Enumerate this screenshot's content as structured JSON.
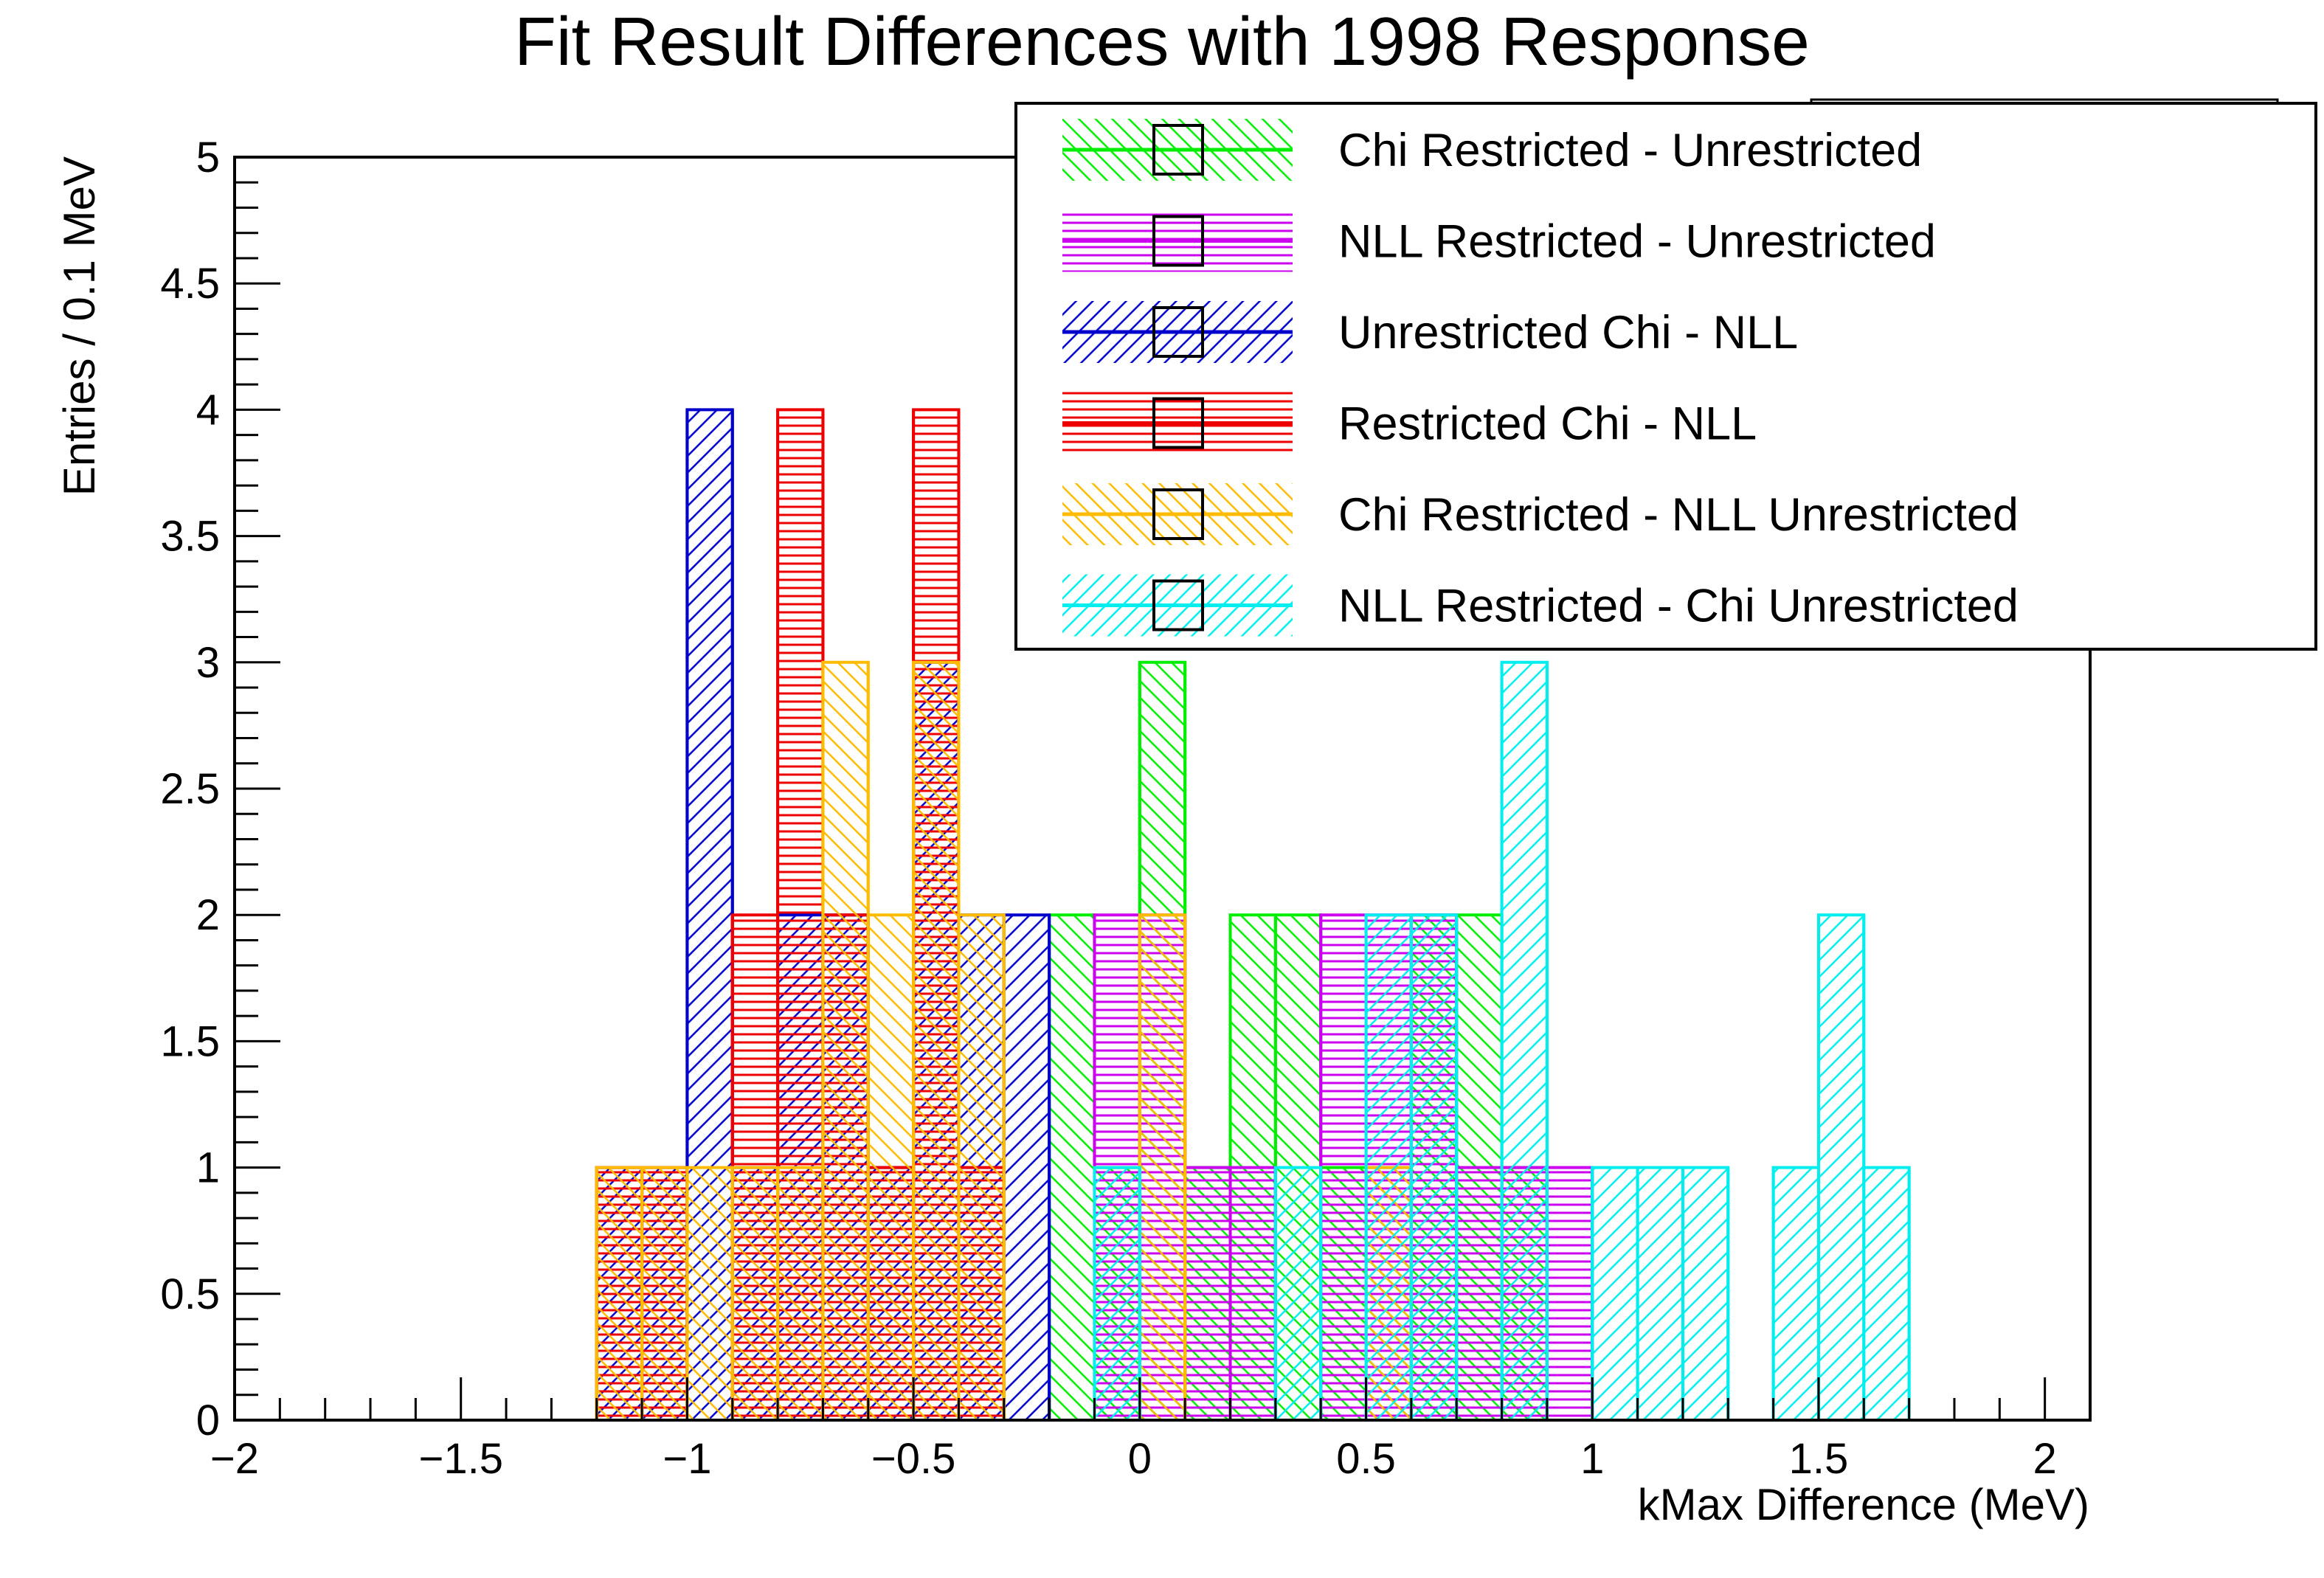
{
  "chart_data": {
    "type": "histogram",
    "title": "Fit Result Differences with 1998 Response",
    "xlabel": "kMax Difference (MeV)",
    "ylabel": "Entries / 0.1 MeV",
    "xlim": [
      -2,
      2.1
    ],
    "ylim": [
      0,
      5
    ],
    "bin_width": 0.1,
    "x_ticks": [
      -2,
      -1.5,
      -1,
      -0.5,
      0,
      0.5,
      1,
      1.5,
      2
    ],
    "x_tick_labels": [
      "−2",
      "−1.5",
      "−1",
      "−0.5",
      "0",
      "0.5",
      "1",
      "1.5",
      "2"
    ],
    "y_ticks": [
      0,
      0.5,
      1,
      1.5,
      2,
      2.5,
      3,
      3.5,
      4,
      4.5,
      5
    ],
    "y_tick_labels": [
      "0",
      "0.5",
      "1",
      "1.5",
      "2",
      "2.5",
      "3",
      "3.5",
      "4",
      "4.5",
      "5"
    ],
    "grid": false,
    "legend_position": "top-right",
    "series": [
      {
        "name": "Chi Restricted - Unrestricted",
        "color": "#00ee00",
        "fill": "hatch-backslash",
        "bins": [
          [
            -0.2,
            2
          ],
          [
            -0.1,
            1
          ],
          [
            0.0,
            3
          ],
          [
            0.1,
            1
          ],
          [
            0.2,
            2
          ],
          [
            0.3,
            2
          ],
          [
            0.4,
            1
          ],
          [
            0.5,
            1
          ],
          [
            0.6,
            2
          ],
          [
            0.7,
            2
          ],
          [
            0.8,
            1
          ]
        ]
      },
      {
        "name": "NLL Restricted - Unrestricted",
        "color": "#cc00ee",
        "fill": "horizontal-lines",
        "bins": [
          [
            -0.1,
            2
          ],
          [
            0.0,
            2
          ],
          [
            0.1,
            1
          ],
          [
            0.2,
            1
          ],
          [
            0.4,
            2
          ],
          [
            0.5,
            2
          ],
          [
            0.6,
            2
          ],
          [
            0.7,
            1
          ],
          [
            0.8,
            1
          ],
          [
            0.9,
            1
          ]
        ]
      },
      {
        "name": "Unrestricted Chi - NLL",
        "color": "#0000cc",
        "fill": "hatch-slash",
        "bins": [
          [
            -1.2,
            1
          ],
          [
            -1.1,
            1
          ],
          [
            -1.0,
            4
          ],
          [
            -0.9,
            1
          ],
          [
            -0.8,
            2
          ],
          [
            -0.7,
            2
          ],
          [
            -0.6,
            1
          ],
          [
            -0.5,
            3
          ],
          [
            -0.4,
            2
          ],
          [
            -0.3,
            2
          ]
        ]
      },
      {
        "name": "Restricted Chi - NLL",
        "color": "#ee0000",
        "fill": "horizontal-lines",
        "bins": [
          [
            -1.2,
            1
          ],
          [
            -1.1,
            1
          ],
          [
            -0.9,
            2
          ],
          [
            -0.8,
            4
          ],
          [
            -0.7,
            2
          ],
          [
            -0.6,
            1
          ],
          [
            -0.5,
            4
          ],
          [
            -0.4,
            1
          ]
        ]
      },
      {
        "name": "Chi Restricted - NLL Unrestricted",
        "color": "#ffbb00",
        "fill": "hatch-backslash",
        "bins": [
          [
            -1.2,
            1
          ],
          [
            -1.1,
            1
          ],
          [
            -1.0,
            1
          ],
          [
            -0.9,
            1
          ],
          [
            -0.8,
            1
          ],
          [
            -0.7,
            3
          ],
          [
            -0.6,
            2
          ],
          [
            -0.5,
            3
          ],
          [
            -0.4,
            2
          ],
          [
            0.0,
            2
          ],
          [
            0.5,
            1
          ]
        ]
      },
      {
        "name": "NLL Restricted - Chi Unrestricted",
        "color": "#00eeee",
        "fill": "hatch-slash",
        "bins": [
          [
            -0.1,
            1
          ],
          [
            0.3,
            1
          ],
          [
            0.5,
            2
          ],
          [
            0.6,
            2
          ],
          [
            0.8,
            3
          ],
          [
            1.0,
            1
          ],
          [
            1.1,
            1
          ],
          [
            1.2,
            1
          ],
          [
            1.4,
            1
          ],
          [
            1.5,
            2
          ],
          [
            1.6,
            1
          ]
        ]
      }
    ]
  }
}
